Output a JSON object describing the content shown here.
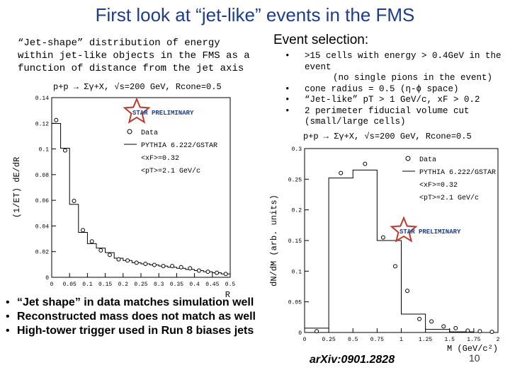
{
  "slide": {
    "title": "First look at “jet-like” events in the FMS",
    "left_description": "“Jet-shape” distribution of energy within jet-like objects in the FMS as a function of distance from the jet axis",
    "event_selection_title": "Event selection:",
    "event_selection": [
      {
        "bullet": "•",
        "text": ">15 cells with energy > 0.4GeV in the event",
        "sub": "(no single pions in the event)"
      },
      {
        "bullet": "•",
        "text": "cone radius = 0.5 (η-ϕ space)",
        "sub": ""
      },
      {
        "bullet": "•",
        "text": "“Jet-like” pT > 1 GeV/c, xF > 0.2",
        "sub": ""
      },
      {
        "bullet": "•",
        "text": "2 perimeter fiducial volume cut (small/large cells)",
        "sub": ""
      }
    ],
    "bottom_bullets": [
      {
        "bullet": "•",
        "text": "“Jet shape” in data matches simulation well"
      },
      {
        "bullet": "•",
        "text": "Reconstructed mass does not match as well"
      },
      {
        "bullet": "•",
        "text": "High-tower trigger used in Run 8 biases jets"
      }
    ],
    "arxiv": "arXiv:0901.2828",
    "page_number": "10"
  },
  "chart_data": [
    {
      "type": "bar",
      "title": "p+p → Σγ+X, √s=200 GeV, Rcone=0.5",
      "ylabel": "(1/ET) dE/dR",
      "xlabel": "R",
      "xlim": [
        0,
        0.5
      ],
      "ylim": [
        0,
        0.16
      ],
      "xticks": [
        "0",
        "0.05",
        "0.1",
        "0.15",
        "0.2",
        "0.25",
        "0.3",
        "0.35",
        "0.4",
        "0.45",
        "0.5"
      ],
      "yticks": [
        "0",
        "0.02",
        "0.04",
        "0.06",
        "0.08",
        "0.1",
        "0.12",
        "0.14"
      ],
      "bin_edges": [
        0,
        0.025,
        0.05,
        0.075,
        0.1,
        0.125,
        0.15,
        0.175,
        0.2,
        0.225,
        0.25,
        0.275,
        0.3,
        0.325,
        0.35,
        0.375,
        0.4,
        0.425,
        0.45,
        0.475,
        0.5
      ],
      "series": [
        {
          "name": "PYTHIA 6.222/GSTAR",
          "style": "histogram",
          "values": [
            0.137,
            0.115,
            0.065,
            0.04,
            0.03,
            0.026,
            0.022,
            0.017,
            0.015,
            0.013,
            0.012,
            0.011,
            0.01,
            0.009,
            0.008,
            0.007,
            0.006,
            0.005,
            0.004,
            0.003
          ]
        },
        {
          "name": "Data",
          "style": "markers",
          "x": [
            0.0125,
            0.0375,
            0.0625,
            0.0875,
            0.1125,
            0.1375,
            0.1625,
            0.1875,
            0.2125,
            0.2375,
            0.2625,
            0.2875,
            0.3125,
            0.3375,
            0.3625,
            0.3875,
            0.4125,
            0.4375,
            0.4625,
            0.4875
          ],
          "y": [
            0.14,
            0.113,
            0.068,
            0.042,
            0.032,
            0.024,
            0.02,
            0.016,
            0.015,
            0.013,
            0.012,
            0.011,
            0.01,
            0.01,
            0.009,
            0.008,
            0.006,
            0.005,
            0.004,
            0.003
          ]
        }
      ],
      "legend": [
        {
          "label": "Data",
          "symbol": "o"
        },
        {
          "label": "PYTHIA 6.222/GSTAR",
          "symbol": "line"
        },
        {
          "label": "<xF>=0.32",
          "symbol": ""
        },
        {
          "label": "<pT>=2.1 GeV/c",
          "symbol": ""
        }
      ],
      "stamp": "STAR PRELIMINARY"
    },
    {
      "type": "bar",
      "title": "p+p → Σγ+X, √s=200 GeV, Rcone=0.5",
      "ylabel": "dN/dM (arb. units)",
      "xlabel": "M (GeV/c²)",
      "xlim": [
        0,
        2
      ],
      "ylim": [
        0,
        0.3
      ],
      "xticks": [
        "0",
        "0.25",
        "0.5",
        "0.75",
        "1",
        "1.25",
        "1.5",
        "1.75",
        "2"
      ],
      "yticks": [
        "0",
        "0.05",
        "0.1",
        "0.15",
        "0.2",
        "0.25",
        "0.3"
      ],
      "bin_edges": [
        0,
        0.25,
        0.5,
        0.75,
        1,
        1.25,
        1.5,
        1.75,
        2
      ],
      "series": [
        {
          "name": "PYTHIA 6.222/GSTAR",
          "style": "histogram",
          "values": [
            0.007,
            0.252,
            0.265,
            0.15,
            0.03,
            0.005,
            0.001,
            0
          ]
        },
        {
          "name": "Data",
          "style": "markers",
          "x": [
            0.125,
            0.375,
            0.625,
            0.8125,
            0.9375,
            1.0625,
            1.1875,
            1.3125,
            1.4375,
            1.5625,
            1.6875,
            1.8125,
            1.9375
          ],
          "y": [
            0.002,
            0.26,
            0.275,
            0.155,
            0.108,
            0.068,
            0.022,
            0.018,
            0.01,
            0.007,
            0.003,
            0.002,
            0.001
          ]
        }
      ],
      "legend": [
        {
          "label": "Data",
          "symbol": "o"
        },
        {
          "label": "PYTHIA 6.222/GSTAR",
          "symbol": "line"
        },
        {
          "label": "<xF>=0.32",
          "symbol": ""
        },
        {
          "label": "<pT>=2.1 GeV/c",
          "symbol": ""
        }
      ],
      "stamp": "STAR PRELIMINARY"
    }
  ],
  "colors": {
    "title": "#1a3d8f",
    "star_outline": "#c0392b",
    "star_text": "#1a3d8f"
  }
}
